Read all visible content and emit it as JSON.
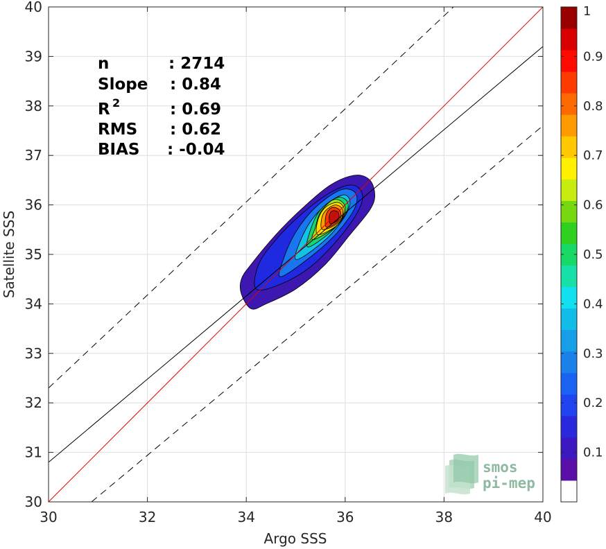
{
  "chart_data": {
    "type": "contour",
    "xlabel": "Argo SSS",
    "ylabel": "Satellite SSS",
    "xlim": [
      30,
      40
    ],
    "ylim": [
      30,
      40
    ],
    "xticks": [
      30,
      32,
      34,
      36,
      38,
      40
    ],
    "yticks": [
      30,
      31,
      32,
      33,
      34,
      35,
      36,
      37,
      38,
      39,
      40
    ],
    "grid": true,
    "stats": {
      "n_label": "n",
      "n_value": ": 2714",
      "slope_label": "Slope",
      "slope_value": ": 0.84",
      "r2_label": "R",
      "r2_sup": "2",
      "r2_value": ": 0.69",
      "rms_label": "RMS",
      "rms_value": ": 0.62",
      "bias_label": "BIAS",
      "bias_value": ": -0.04"
    },
    "reference_lines": {
      "one_to_one": {
        "from": [
          30,
          30
        ],
        "to": [
          40,
          40
        ],
        "color": "#e00000"
      },
      "regression": {
        "from": [
          30,
          30.8
        ],
        "to": [
          40,
          39.2
        ],
        "color": "#000000"
      },
      "upper_bound": {
        "from": [
          30,
          32.3
        ],
        "to": [
          40,
          41.7
        ],
        "style": "dashed"
      },
      "lower_bound": {
        "from": [
          30.87,
          30
        ],
        "to": [
          40,
          37.6
        ],
        "style": "dashed"
      }
    },
    "density_peak": {
      "x": 35.8,
      "y": 35.75,
      "value": 1.0
    },
    "contours": [
      {
        "level": 0.05,
        "color": "#3d18b0",
        "points": [
          [
            33.9,
            34.2
          ],
          [
            34.1,
            33.9
          ],
          [
            34.4,
            34.0
          ],
          [
            35.0,
            34.3
          ],
          [
            35.6,
            34.8
          ],
          [
            36.1,
            35.4
          ],
          [
            36.5,
            35.9
          ],
          [
            36.6,
            36.2
          ],
          [
            36.5,
            36.5
          ],
          [
            36.2,
            36.6
          ],
          [
            35.7,
            36.4
          ],
          [
            35.1,
            35.9
          ],
          [
            34.6,
            35.4
          ],
          [
            34.1,
            34.8
          ],
          [
            33.9,
            34.5
          ]
        ]
      },
      {
        "level": 0.15,
        "color": "#1f2ae0",
        "points": [
          [
            34.2,
            34.3
          ],
          [
            34.7,
            34.4
          ],
          [
            35.3,
            34.75
          ],
          [
            35.85,
            35.3
          ],
          [
            36.25,
            35.85
          ],
          [
            36.35,
            36.2
          ],
          [
            36.15,
            36.4
          ],
          [
            35.7,
            36.25
          ],
          [
            35.1,
            35.8
          ],
          [
            34.6,
            35.3
          ],
          [
            34.25,
            34.8
          ]
        ]
      },
      {
        "level": 0.25,
        "color": "#1876ee",
        "points": [
          [
            34.7,
            34.55
          ],
          [
            35.3,
            34.95
          ],
          [
            35.85,
            35.45
          ],
          [
            36.2,
            35.95
          ],
          [
            36.2,
            36.25
          ],
          [
            35.9,
            36.3
          ],
          [
            35.4,
            35.95
          ],
          [
            35.0,
            35.45
          ],
          [
            34.75,
            34.9
          ]
        ]
      },
      {
        "level": 0.35,
        "color": "#12c3e6",
        "points": [
          [
            35.0,
            34.9
          ],
          [
            35.55,
            35.25
          ],
          [
            35.95,
            35.7
          ],
          [
            36.1,
            36.05
          ],
          [
            35.95,
            36.2
          ],
          [
            35.55,
            35.95
          ],
          [
            35.2,
            35.5
          ]
        ]
      },
      {
        "level": 0.45,
        "color": "#19d36e",
        "points": [
          [
            35.25,
            35.15
          ],
          [
            35.7,
            35.45
          ],
          [
            36.0,
            35.8
          ],
          [
            36.05,
            36.05
          ],
          [
            35.85,
            36.15
          ],
          [
            35.5,
            35.9
          ],
          [
            35.3,
            35.5
          ]
        ]
      },
      {
        "level": 0.55,
        "color": "#9be31a",
        "points": [
          [
            35.35,
            35.3
          ],
          [
            35.8,
            35.55
          ],
          [
            36.0,
            35.85
          ],
          [
            35.95,
            36.05
          ],
          [
            35.75,
            36.1
          ],
          [
            35.5,
            35.85
          ],
          [
            35.4,
            35.55
          ]
        ]
      },
      {
        "level": 0.65,
        "color": "#ffe100",
        "points": [
          [
            35.45,
            35.4
          ],
          [
            35.85,
            35.6
          ],
          [
            35.98,
            35.9
          ],
          [
            35.85,
            36.05
          ],
          [
            35.6,
            35.95
          ],
          [
            35.45,
            35.7
          ]
        ]
      },
      {
        "level": 0.75,
        "color": "#ff9a00",
        "points": [
          [
            35.55,
            35.5
          ],
          [
            35.88,
            35.65
          ],
          [
            35.95,
            35.9
          ],
          [
            35.8,
            36.0
          ],
          [
            35.6,
            35.88
          ],
          [
            35.52,
            35.7
          ]
        ]
      },
      {
        "level": 0.85,
        "color": "#f03c00",
        "points": [
          [
            35.62,
            35.55
          ],
          [
            35.88,
            35.68
          ],
          [
            35.9,
            35.88
          ],
          [
            35.75,
            35.95
          ],
          [
            35.62,
            35.82
          ]
        ]
      },
      {
        "level": 0.95,
        "color": "#c01010",
        "points": [
          [
            35.7,
            35.62
          ],
          [
            35.86,
            35.7
          ],
          [
            35.86,
            35.85
          ],
          [
            35.74,
            35.88
          ],
          [
            35.68,
            35.78
          ]
        ]
      }
    ],
    "colorbar": {
      "range": [
        0,
        1
      ],
      "labels": [
        "0.1",
        "0.2",
        "0.3",
        "0.4",
        "0.5",
        "0.6",
        "0.7",
        "0.8",
        "0.9",
        "1"
      ],
      "colors": [
        "#ffffff",
        "#5a10a8",
        "#3d18c0",
        "#2a28dc",
        "#1f44f0",
        "#1a62f2",
        "#1a80ea",
        "#169ee6",
        "#12bce8",
        "#10e0f0",
        "#16e0a8",
        "#18d868",
        "#30d020",
        "#78d810",
        "#c8ec10",
        "#fff000",
        "#ffc800",
        "#ff9a00",
        "#ff6a00",
        "#ff3a00",
        "#ff0a00",
        "#d80000",
        "#980000"
      ]
    }
  },
  "logo": {
    "line1": "smos",
    "line2": "pi-mep"
  }
}
